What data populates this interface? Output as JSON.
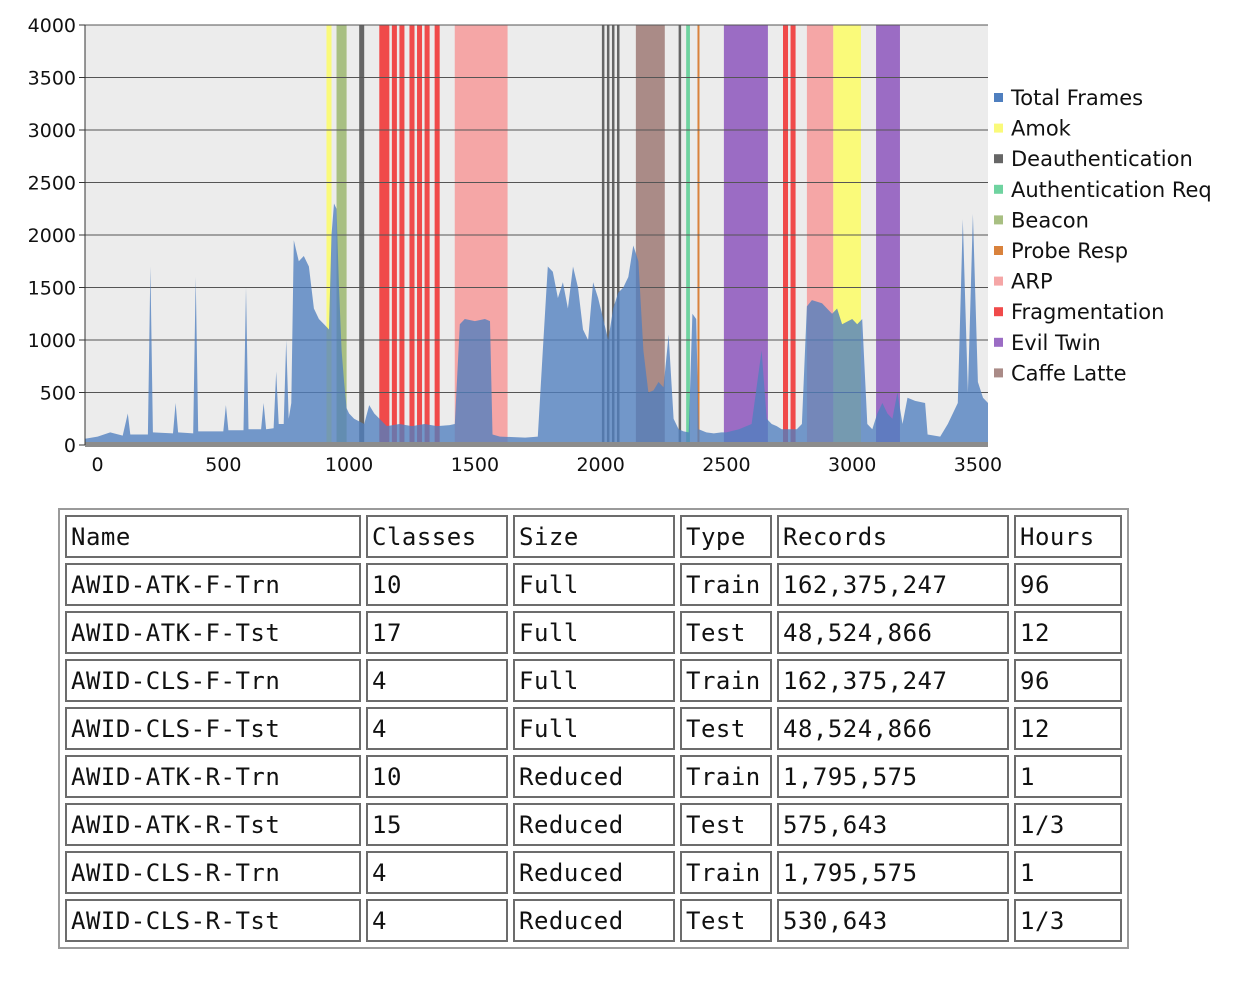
{
  "chart_data": [
    {
      "type": "area",
      "title": "",
      "xlabel": "",
      "ylabel": "",
      "xlim": [
        -50,
        3540
      ],
      "ylim": [
        0,
        4000
      ],
      "x_ticks": [
        0,
        500,
        1000,
        1500,
        2000,
        2500,
        3000,
        3500
      ],
      "y_ticks": [
        0,
        500,
        1000,
        1500,
        2000,
        2500,
        3000,
        3500,
        4000
      ],
      "grid": "horizontal",
      "legend_position": "right",
      "legend": [
        {
          "name": "Total Frames",
          "color": "#4f7fbf"
        },
        {
          "name": "Amok",
          "color": "#fafa7a"
        },
        {
          "name": "Deauthentication",
          "color": "#666666"
        },
        {
          "name": "Authentication Req",
          "color": "#6fd3a0"
        },
        {
          "name": "Beacon",
          "color": "#a8bf82"
        },
        {
          "name": "Probe Resp",
          "color": "#d9823c"
        },
        {
          "name": "ARP",
          "color": "#f5a6a6"
        },
        {
          "name": "Fragmentation",
          "color": "#f04a4a"
        },
        {
          "name": "Evil Twin",
          "color": "#9b6cc4"
        },
        {
          "name": "Caffe Latte",
          "color": "#aa8b87"
        }
      ],
      "series": [
        {
          "name": "Total Frames",
          "color": "#4f7fbf",
          "points": [
            [
              -50,
              60
            ],
            [
              0,
              80
            ],
            [
              50,
              120
            ],
            [
              100,
              90
            ],
            [
              120,
              300
            ],
            [
              130,
              100
            ],
            [
              200,
              100
            ],
            [
              210,
              1700
            ],
            [
              220,
              120
            ],
            [
              300,
              110
            ],
            [
              310,
              400
            ],
            [
              320,
              120
            ],
            [
              380,
              110
            ],
            [
              390,
              1600
            ],
            [
              400,
              130
            ],
            [
              500,
              130
            ],
            [
              510,
              380
            ],
            [
              520,
              140
            ],
            [
              580,
              140
            ],
            [
              590,
              1500
            ],
            [
              600,
              150
            ],
            [
              650,
              150
            ],
            [
              660,
              400
            ],
            [
              670,
              150
            ],
            [
              700,
              160
            ],
            [
              710,
              700
            ],
            [
              720,
              200
            ],
            [
              740,
              200
            ],
            [
              750,
              1000
            ],
            [
              760,
              250
            ],
            [
              770,
              400
            ],
            [
              780,
              1950
            ],
            [
              800,
              1750
            ],
            [
              820,
              1800
            ],
            [
              840,
              1700
            ],
            [
              860,
              1300
            ],
            [
              880,
              1200
            ],
            [
              900,
              1150
            ],
            [
              920,
              1100
            ],
            [
              930,
              2000
            ],
            [
              940,
              2300
            ],
            [
              950,
              2250
            ],
            [
              960,
              1500
            ],
            [
              970,
              900
            ],
            [
              980,
              600
            ],
            [
              990,
              350
            ],
            [
              1000,
              300
            ],
            [
              1020,
              250
            ],
            [
              1060,
              200
            ],
            [
              1080,
              380
            ],
            [
              1100,
              300
            ],
            [
              1150,
              180
            ],
            [
              1200,
              200
            ],
            [
              1250,
              180
            ],
            [
              1300,
              200
            ],
            [
              1350,
              180
            ],
            [
              1400,
              190
            ],
            [
              1420,
              200
            ],
            [
              1440,
              1150
            ],
            [
              1460,
              1200
            ],
            [
              1500,
              1180
            ],
            [
              1540,
              1200
            ],
            [
              1560,
              1180
            ],
            [
              1570,
              100
            ],
            [
              1600,
              80
            ],
            [
              1700,
              70
            ],
            [
              1750,
              80
            ],
            [
              1770,
              900
            ],
            [
              1790,
              1700
            ],
            [
              1810,
              1650
            ],
            [
              1830,
              1400
            ],
            [
              1850,
              1550
            ],
            [
              1870,
              1300
            ],
            [
              1890,
              1700
            ],
            [
              1910,
              1500
            ],
            [
              1930,
              1100
            ],
            [
              1950,
              1000
            ],
            [
              1970,
              1550
            ],
            [
              1990,
              1400
            ],
            [
              2010,
              1200
            ],
            [
              2030,
              1000
            ],
            [
              2050,
              1300
            ],
            [
              2070,
              1450
            ],
            [
              2090,
              1500
            ],
            [
              2110,
              1600
            ],
            [
              2130,
              1900
            ],
            [
              2150,
              1750
            ],
            [
              2170,
              900
            ],
            [
              2190,
              500
            ],
            [
              2210,
              520
            ],
            [
              2230,
              600
            ],
            [
              2250,
              550
            ],
            [
              2270,
              1050
            ],
            [
              2290,
              250
            ],
            [
              2310,
              150
            ],
            [
              2330,
              130
            ],
            [
              2350,
              120
            ],
            [
              2365,
              1250
            ],
            [
              2380,
              1200
            ],
            [
              2390,
              150
            ],
            [
              2420,
              120
            ],
            [
              2450,
              110
            ],
            [
              2480,
              120
            ],
            [
              2500,
              120
            ],
            [
              2550,
              150
            ],
            [
              2600,
              200
            ],
            [
              2640,
              900
            ],
            [
              2660,
              250
            ],
            [
              2680,
              200
            ],
            [
              2700,
              180
            ],
            [
              2720,
              150
            ],
            [
              2760,
              150
            ],
            [
              2780,
              150
            ],
            [
              2800,
              200
            ],
            [
              2820,
              1320
            ],
            [
              2840,
              1380
            ],
            [
              2880,
              1350
            ],
            [
              2900,
              1300
            ],
            [
              2920,
              1250
            ],
            [
              2940,
              1300
            ],
            [
              2960,
              1150
            ],
            [
              3000,
              1200
            ],
            [
              3020,
              1150
            ],
            [
              3040,
              1200
            ],
            [
              3060,
              200
            ],
            [
              3080,
              150
            ],
            [
              3100,
              300
            ],
            [
              3120,
              400
            ],
            [
              3140,
              300
            ],
            [
              3160,
              250
            ],
            [
              3180,
              500
            ],
            [
              3200,
              200
            ],
            [
              3220,
              450
            ],
            [
              3250,
              420
            ],
            [
              3290,
              400
            ],
            [
              3300,
              100
            ],
            [
              3350,
              80
            ],
            [
              3380,
              200
            ],
            [
              3400,
              300
            ],
            [
              3420,
              400
            ],
            [
              3440,
              2150
            ],
            [
              3460,
              500
            ],
            [
              3480,
              2200
            ],
            [
              3500,
              600
            ],
            [
              3520,
              450
            ],
            [
              3540,
              400
            ]
          ]
        }
      ],
      "attack_regions": [
        {
          "label": "Amok",
          "from": 910,
          "to": 930
        },
        {
          "label": "Beacon",
          "from": 950,
          "to": 990
        },
        {
          "label": "Deauthentication",
          "from": 1040,
          "to": 1060
        },
        {
          "label": "Fragmentation",
          "from": 1120,
          "to": 1160
        },
        {
          "label": "Fragmentation",
          "from": 1170,
          "to": 1190
        },
        {
          "label": "Fragmentation",
          "from": 1200,
          "to": 1220
        },
        {
          "label": "Fragmentation",
          "from": 1240,
          "to": 1260
        },
        {
          "label": "Fragmentation",
          "from": 1270,
          "to": 1290
        },
        {
          "label": "Fragmentation",
          "from": 1300,
          "to": 1320
        },
        {
          "label": "Fragmentation",
          "from": 1340,
          "to": 1360
        },
        {
          "label": "ARP",
          "from": 1420,
          "to": 1630
        },
        {
          "label": "Deauthentication",
          "from": 2005,
          "to": 2015
        },
        {
          "label": "Deauthentication",
          "from": 2025,
          "to": 2035
        },
        {
          "label": "Deauthentication",
          "from": 2045,
          "to": 2055
        },
        {
          "label": "Deauthentication",
          "from": 2065,
          "to": 2075
        },
        {
          "label": "Caffe Latte",
          "from": 2140,
          "to": 2255
        },
        {
          "label": "Deauthentication",
          "from": 2310,
          "to": 2320
        },
        {
          "label": "Authentication Req",
          "from": 2340,
          "to": 2355
        },
        {
          "label": "Probe Resp",
          "from": 2385,
          "to": 2392
        },
        {
          "label": "Evil Twin",
          "from": 2490,
          "to": 2665
        },
        {
          "label": "Fragmentation",
          "from": 2725,
          "to": 2745
        },
        {
          "label": "Fragmentation",
          "from": 2755,
          "to": 2775
        },
        {
          "label": "ARP",
          "from": 2820,
          "to": 2925
        },
        {
          "label": "Amok",
          "from": 2925,
          "to": 3035
        },
        {
          "label": "Evil Twin",
          "from": 3095,
          "to": 3190
        }
      ]
    },
    {
      "type": "table",
      "columns": [
        "Name",
        "Classes",
        "Size",
        "Type",
        "Records",
        "Hours"
      ],
      "rows": [
        [
          "AWID-ATK-F-Trn",
          "10",
          "Full",
          "Train",
          "162,375,247",
          "96"
        ],
        [
          "AWID-ATK-F-Tst",
          "17",
          "Full",
          "Test",
          "48,524,866",
          "12"
        ],
        [
          "AWID-CLS-F-Trn",
          "4",
          "Full",
          "Train",
          "162,375,247",
          "96"
        ],
        [
          "AWID-CLS-F-Tst",
          "4",
          "Full",
          "Test",
          "48,524,866",
          "12"
        ],
        [
          "AWID-ATK-R-Trn",
          "10",
          "Reduced",
          "Train",
          "1,795,575",
          "1"
        ],
        [
          "AWID-ATK-R-Tst",
          "15",
          "Reduced",
          "Test",
          "575,643",
          "1/3"
        ],
        [
          "AWID-CLS-R-Trn",
          "4",
          "Reduced",
          "Train",
          "1,795,575",
          "1"
        ],
        [
          "AWID-CLS-R-Tst",
          "4",
          "Reduced",
          "Test",
          "530,643",
          "1/3"
        ]
      ]
    }
  ]
}
